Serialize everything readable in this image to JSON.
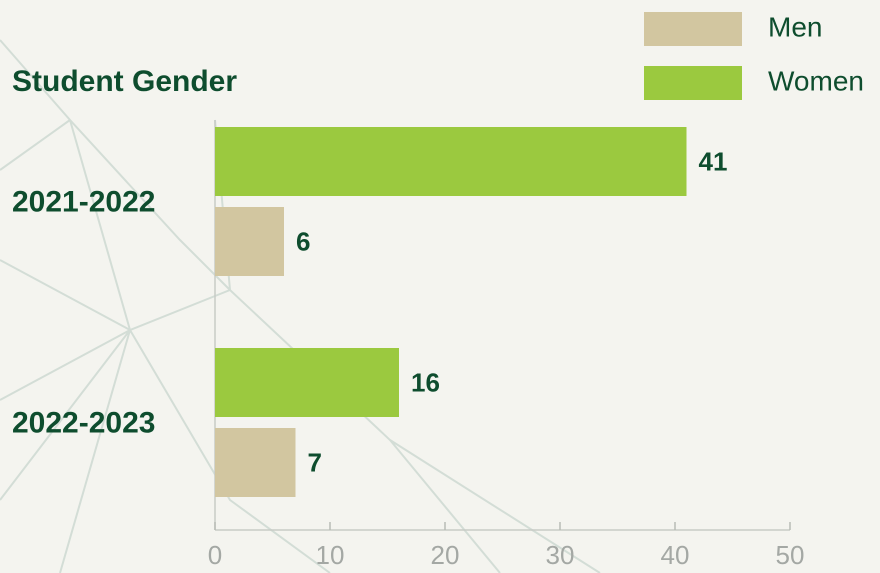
{
  "chart_data": {
    "type": "bar",
    "orientation": "horizontal",
    "title": "Student Gender",
    "categories": [
      "2021-2022",
      "2022-2023"
    ],
    "series": [
      {
        "name": "Men",
        "color": "#d2c6a0",
        "values": [
          6,
          7
        ]
      },
      {
        "name": "Women",
        "color": "#9bc93f",
        "values": [
          41,
          16
        ]
      }
    ],
    "xlim": [
      0,
      50
    ],
    "xticks": [
      0,
      10,
      20,
      30,
      40,
      50
    ],
    "legend": "top-right"
  }
}
